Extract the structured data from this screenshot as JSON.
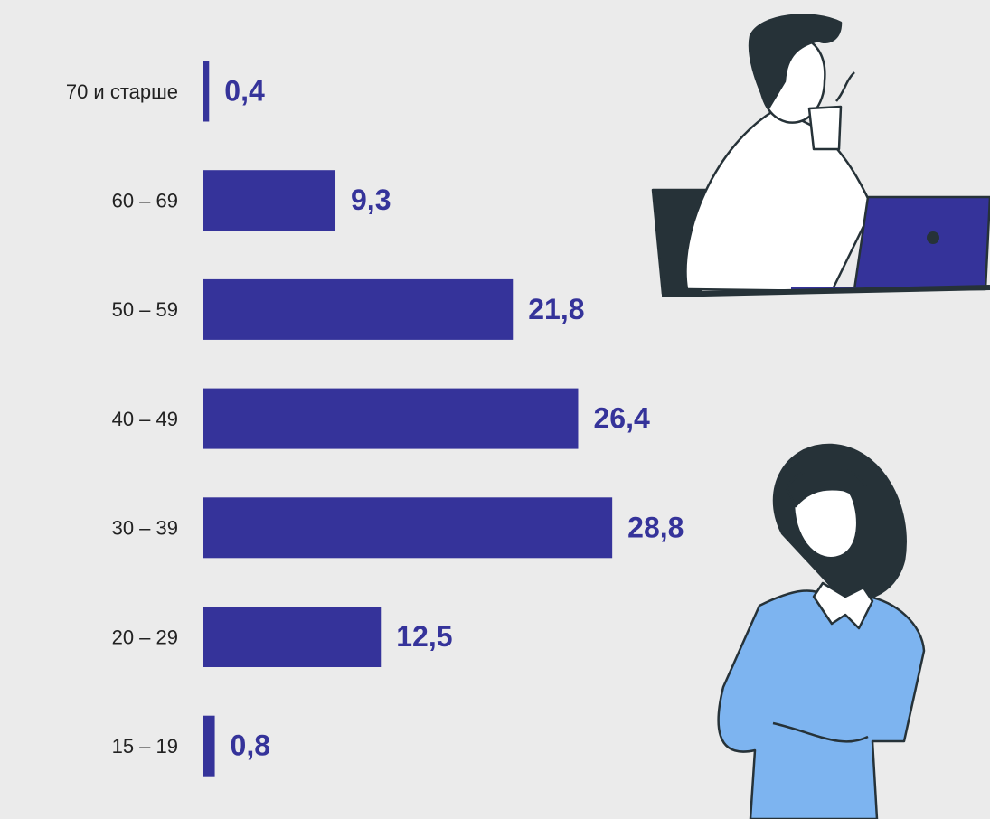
{
  "chart_data": {
    "type": "hbar",
    "categories": [
      "70 и старше",
      "60 – 69",
      "50 – 59",
      "40 – 49",
      "30 – 39",
      "20 – 29",
      "15 – 19"
    ],
    "values": [
      0.4,
      9.3,
      21.8,
      26.4,
      28.8,
      12.5,
      0.8
    ],
    "value_labels": [
      "0,4",
      "9,3",
      "21,8",
      "26,4",
      "28,8",
      "12,5",
      "0,8"
    ],
    "color": "#35339a"
  }
}
